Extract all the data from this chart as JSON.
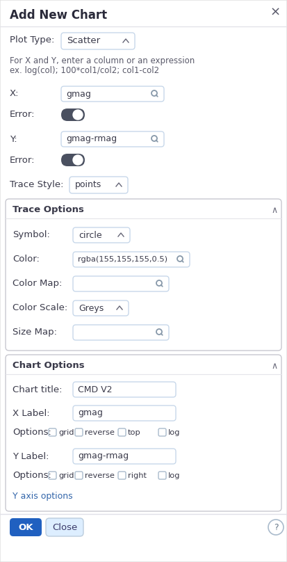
{
  "title": "Add New Chart",
  "close_x": "×",
  "bg_color": "#f0f0f0",
  "dialog_bg": "#ffffff",
  "plot_type_label": "Plot Type:",
  "plot_type_value": "Scatter",
  "hint_line1": "For X and Y, enter a column or an expression",
  "hint_line2": "ex. log(col); 100*col1/col2; col1-col2",
  "x_label": "X:",
  "x_value": "gmag",
  "x_error_label": "Error:",
  "y_label": "Y:",
  "y_value": "gmag-rmag",
  "y_error_label": "Error:",
  "trace_style_label": "Trace Style:",
  "trace_style_value": "points",
  "section1_title": "Trace Options",
  "symbol_label": "Symbol:",
  "symbol_value": "circle",
  "color_label": "Color:",
  "color_value": "rgba(155,155,155,0.5)",
  "colormap_label": "Color Map:",
  "colormap_value": "",
  "colorscale_label": "Color Scale:",
  "colorscale_value": "Greys",
  "sizemap_label": "Size Map:",
  "sizemap_value": "",
  "section2_title": "Chart Options",
  "chart_title_label": "Chart title:",
  "chart_title_value": "CMD V2",
  "xlabel_label": "X Label:",
  "xlabel_value": "gmag",
  "x_options_label": "Options:",
  "x_options": [
    "grid",
    "reverse",
    "top",
    "log"
  ],
  "ylabel_label": "Y Label:",
  "ylabel_value": "gmag-rmag",
  "y_options_label": "Options:",
  "y_options": [
    "grid",
    "reverse",
    "right",
    "log"
  ],
  "yaxis_options": "Y axis options",
  "ok_btn": "OK",
  "close_btn": "Close",
  "help_icon": "?",
  "input_border": "#c8d8ea",
  "input_bg": "#ffffff",
  "label_color": "#3a3a4a",
  "hint_color": "#5a5a6a",
  "ok_btn_bg": "#2060c0",
  "ok_btn_fg": "#ffffff",
  "close_btn_bg": "#ddeeff",
  "close_btn_fg": "#3a3a6a",
  "section_border": "#c8c8d0",
  "toggle_dark": "#4a5060",
  "title_color": "#2a2a3a"
}
